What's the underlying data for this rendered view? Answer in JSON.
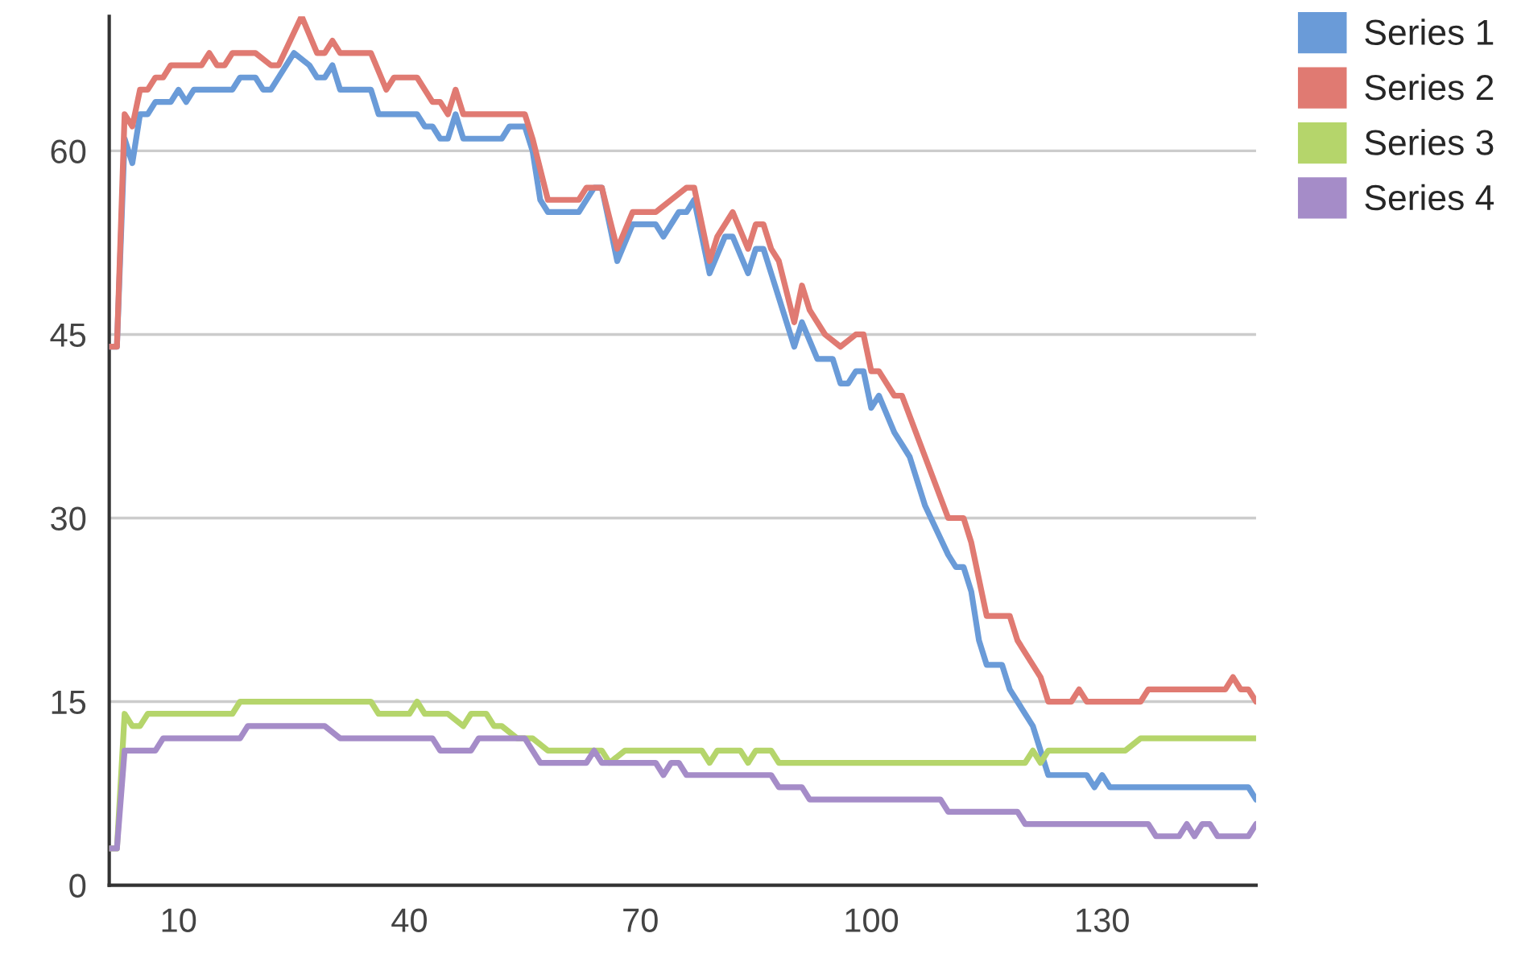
{
  "chart_data": {
    "type": "line",
    "xlim": [
      1,
      150
    ],
    "xticks": [
      10,
      40,
      70,
      100,
      130
    ],
    "ylim": [
      0,
      71
    ],
    "yticks": [
      0,
      15,
      30,
      45,
      60
    ],
    "grid": "y",
    "legend": "top right",
    "marker": "none",
    "line_style": "solid",
    "series": [
      {
        "name": "Series 1",
        "color": "#6a9bd8",
        "x": [
          1,
          2,
          3,
          4,
          5,
          6,
          7,
          9,
          10,
          11,
          12,
          17,
          18,
          20,
          21,
          22,
          25,
          27,
          28,
          29,
          30,
          31,
          35,
          36,
          41,
          42,
          43,
          44,
          45,
          46,
          47,
          52,
          53,
          55,
          56,
          57,
          58,
          62,
          64,
          65,
          67,
          69,
          72,
          73,
          75,
          76,
          77,
          79,
          81,
          82,
          84,
          85,
          86,
          87,
          88,
          90,
          91,
          93,
          95,
          96,
          97,
          98,
          99,
          100,
          101,
          103,
          104,
          105,
          107,
          110,
          111,
          112,
          113,
          114,
          115,
          117,
          118,
          119,
          121,
          122,
          123,
          128,
          129,
          130,
          131,
          149,
          150
        ],
        "values": [
          44,
          44,
          61,
          59,
          63,
          63,
          64,
          64,
          65,
          64,
          65,
          65,
          66,
          66,
          65,
          65,
          68,
          67,
          66,
          66,
          67,
          65,
          65,
          63,
          63,
          62,
          62,
          61,
          61,
          63,
          61,
          61,
          62,
          62,
          60,
          56,
          55,
          55,
          57,
          57,
          51,
          54,
          54,
          53,
          55,
          55,
          56,
          50,
          53,
          53,
          50,
          52,
          52,
          50,
          48,
          44,
          46,
          43,
          43,
          41,
          41,
          42,
          42,
          39,
          40,
          37,
          36,
          35,
          31,
          27,
          26,
          26,
          24,
          20,
          18,
          18,
          16,
          15,
          13,
          11,
          9,
          9,
          8,
          9,
          8,
          8,
          7
        ]
      },
      {
        "name": "Series 2",
        "color": "#e07a72",
        "x": [
          1,
          2,
          3,
          4,
          5,
          6,
          7,
          8,
          9,
          13,
          14,
          15,
          16,
          17,
          20,
          22,
          23,
          26,
          28,
          29,
          30,
          31,
          35,
          37,
          38,
          41,
          43,
          44,
          45,
          46,
          47,
          55,
          56,
          58,
          62,
          63,
          65,
          67,
          69,
          72,
          74,
          76,
          77,
          79,
          80,
          82,
          84,
          85,
          86,
          87,
          88,
          90,
          91,
          92,
          94,
          96,
          98,
          99,
          100,
          101,
          103,
          104,
          107,
          110,
          112,
          113,
          115,
          118,
          119,
          122,
          123,
          126,
          127,
          128,
          135,
          136,
          146,
          147,
          148,
          149,
          150
        ],
        "values": [
          44,
          44,
          63,
          62,
          65,
          65,
          66,
          66,
          67,
          67,
          68,
          67,
          67,
          68,
          68,
          67,
          67,
          71,
          68,
          68,
          69,
          68,
          68,
          65,
          66,
          66,
          64,
          64,
          63,
          65,
          63,
          63,
          61,
          56,
          56,
          57,
          57,
          52,
          55,
          55,
          56,
          57,
          57,
          51,
          53,
          55,
          52,
          54,
          54,
          52,
          51,
          46,
          49,
          47,
          45,
          44,
          45,
          45,
          42,
          42,
          40,
          40,
          35,
          30,
          30,
          28,
          22,
          22,
          20,
          17,
          15,
          15,
          16,
          15,
          15,
          16,
          16,
          17,
          16,
          16,
          15
        ]
      },
      {
        "name": "Series 3",
        "color": "#b5d56b",
        "x": [
          1,
          2,
          3,
          4,
          5,
          6,
          17,
          18,
          35,
          36,
          40,
          41,
          42,
          45,
          47,
          48,
          50,
          51,
          52,
          54,
          56,
          58,
          64,
          65,
          66,
          68,
          78,
          79,
          80,
          83,
          84,
          85,
          87,
          88,
          120,
          121,
          122,
          123,
          133,
          135,
          150
        ],
        "values": [
          3,
          3,
          14,
          13,
          13,
          14,
          14,
          15,
          15,
          14,
          14,
          15,
          14,
          14,
          13,
          14,
          14,
          13,
          13,
          12,
          12,
          11,
          11,
          11,
          10,
          11,
          11,
          10,
          11,
          11,
          10,
          11,
          11,
          10,
          10,
          11,
          10,
          11,
          11,
          12,
          12
        ]
      },
      {
        "name": "Series 4",
        "color": "#a58cc8",
        "x": [
          1,
          2,
          3,
          7,
          8,
          18,
          19,
          29,
          31,
          43,
          44,
          48,
          49,
          55,
          56,
          57,
          63,
          64,
          65,
          72,
          73,
          74,
          75,
          76,
          87,
          88,
          91,
          92,
          109,
          110,
          119,
          120,
          136,
          137,
          140,
          141,
          142,
          143,
          144,
          145,
          149,
          150
        ],
        "values": [
          3,
          3,
          11,
          11,
          12,
          12,
          13,
          13,
          12,
          12,
          11,
          11,
          12,
          12,
          11,
          10,
          10,
          11,
          10,
          10,
          9,
          10,
          10,
          9,
          9,
          8,
          8,
          7,
          7,
          6,
          6,
          5,
          5,
          4,
          4,
          5,
          4,
          5,
          5,
          4,
          4,
          5
        ]
      }
    ]
  }
}
